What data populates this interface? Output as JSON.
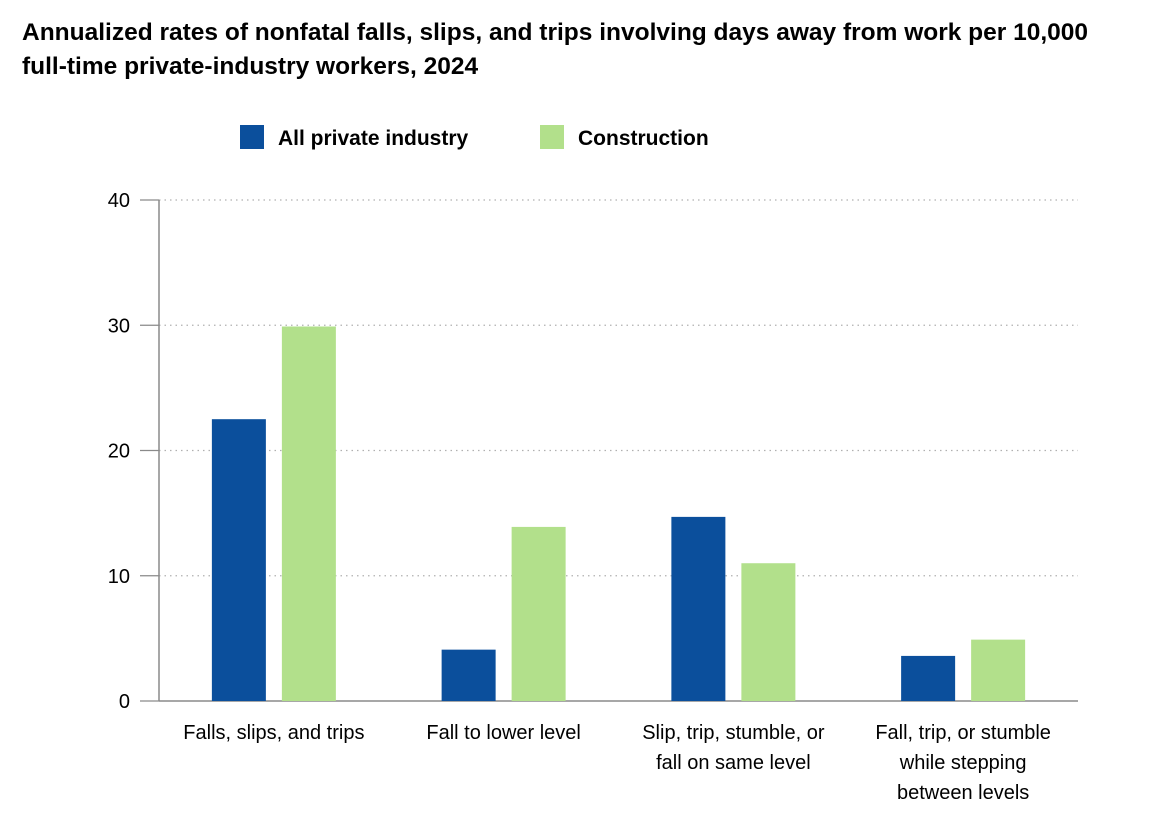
{
  "chart_data": {
    "type": "bar",
    "title": "Annualized rates of nonfatal falls, slips, and trips involving days away from work per 10,000 full-time private-industry workers, 2024",
    "categories": [
      [
        "Falls, slips, and trips"
      ],
      [
        "Fall to lower level"
      ],
      [
        "Slip, trip, stumble, or",
        "fall on same level"
      ],
      [
        "Fall, trip, or stumble",
        "while stepping",
        "between levels"
      ]
    ],
    "series": [
      {
        "name": "All private industry",
        "color": "#0b4f9c",
        "values": [
          22.5,
          4.1,
          14.7,
          3.6
        ]
      },
      {
        "name": "Construction",
        "color": "#b2e08b",
        "values": [
          29.9,
          13.9,
          11.0,
          4.9
        ]
      }
    ],
    "ylim": [
      0,
      40
    ],
    "yticks": [
      0,
      10,
      20,
      30,
      40
    ],
    "grid": true,
    "legend": "top"
  }
}
